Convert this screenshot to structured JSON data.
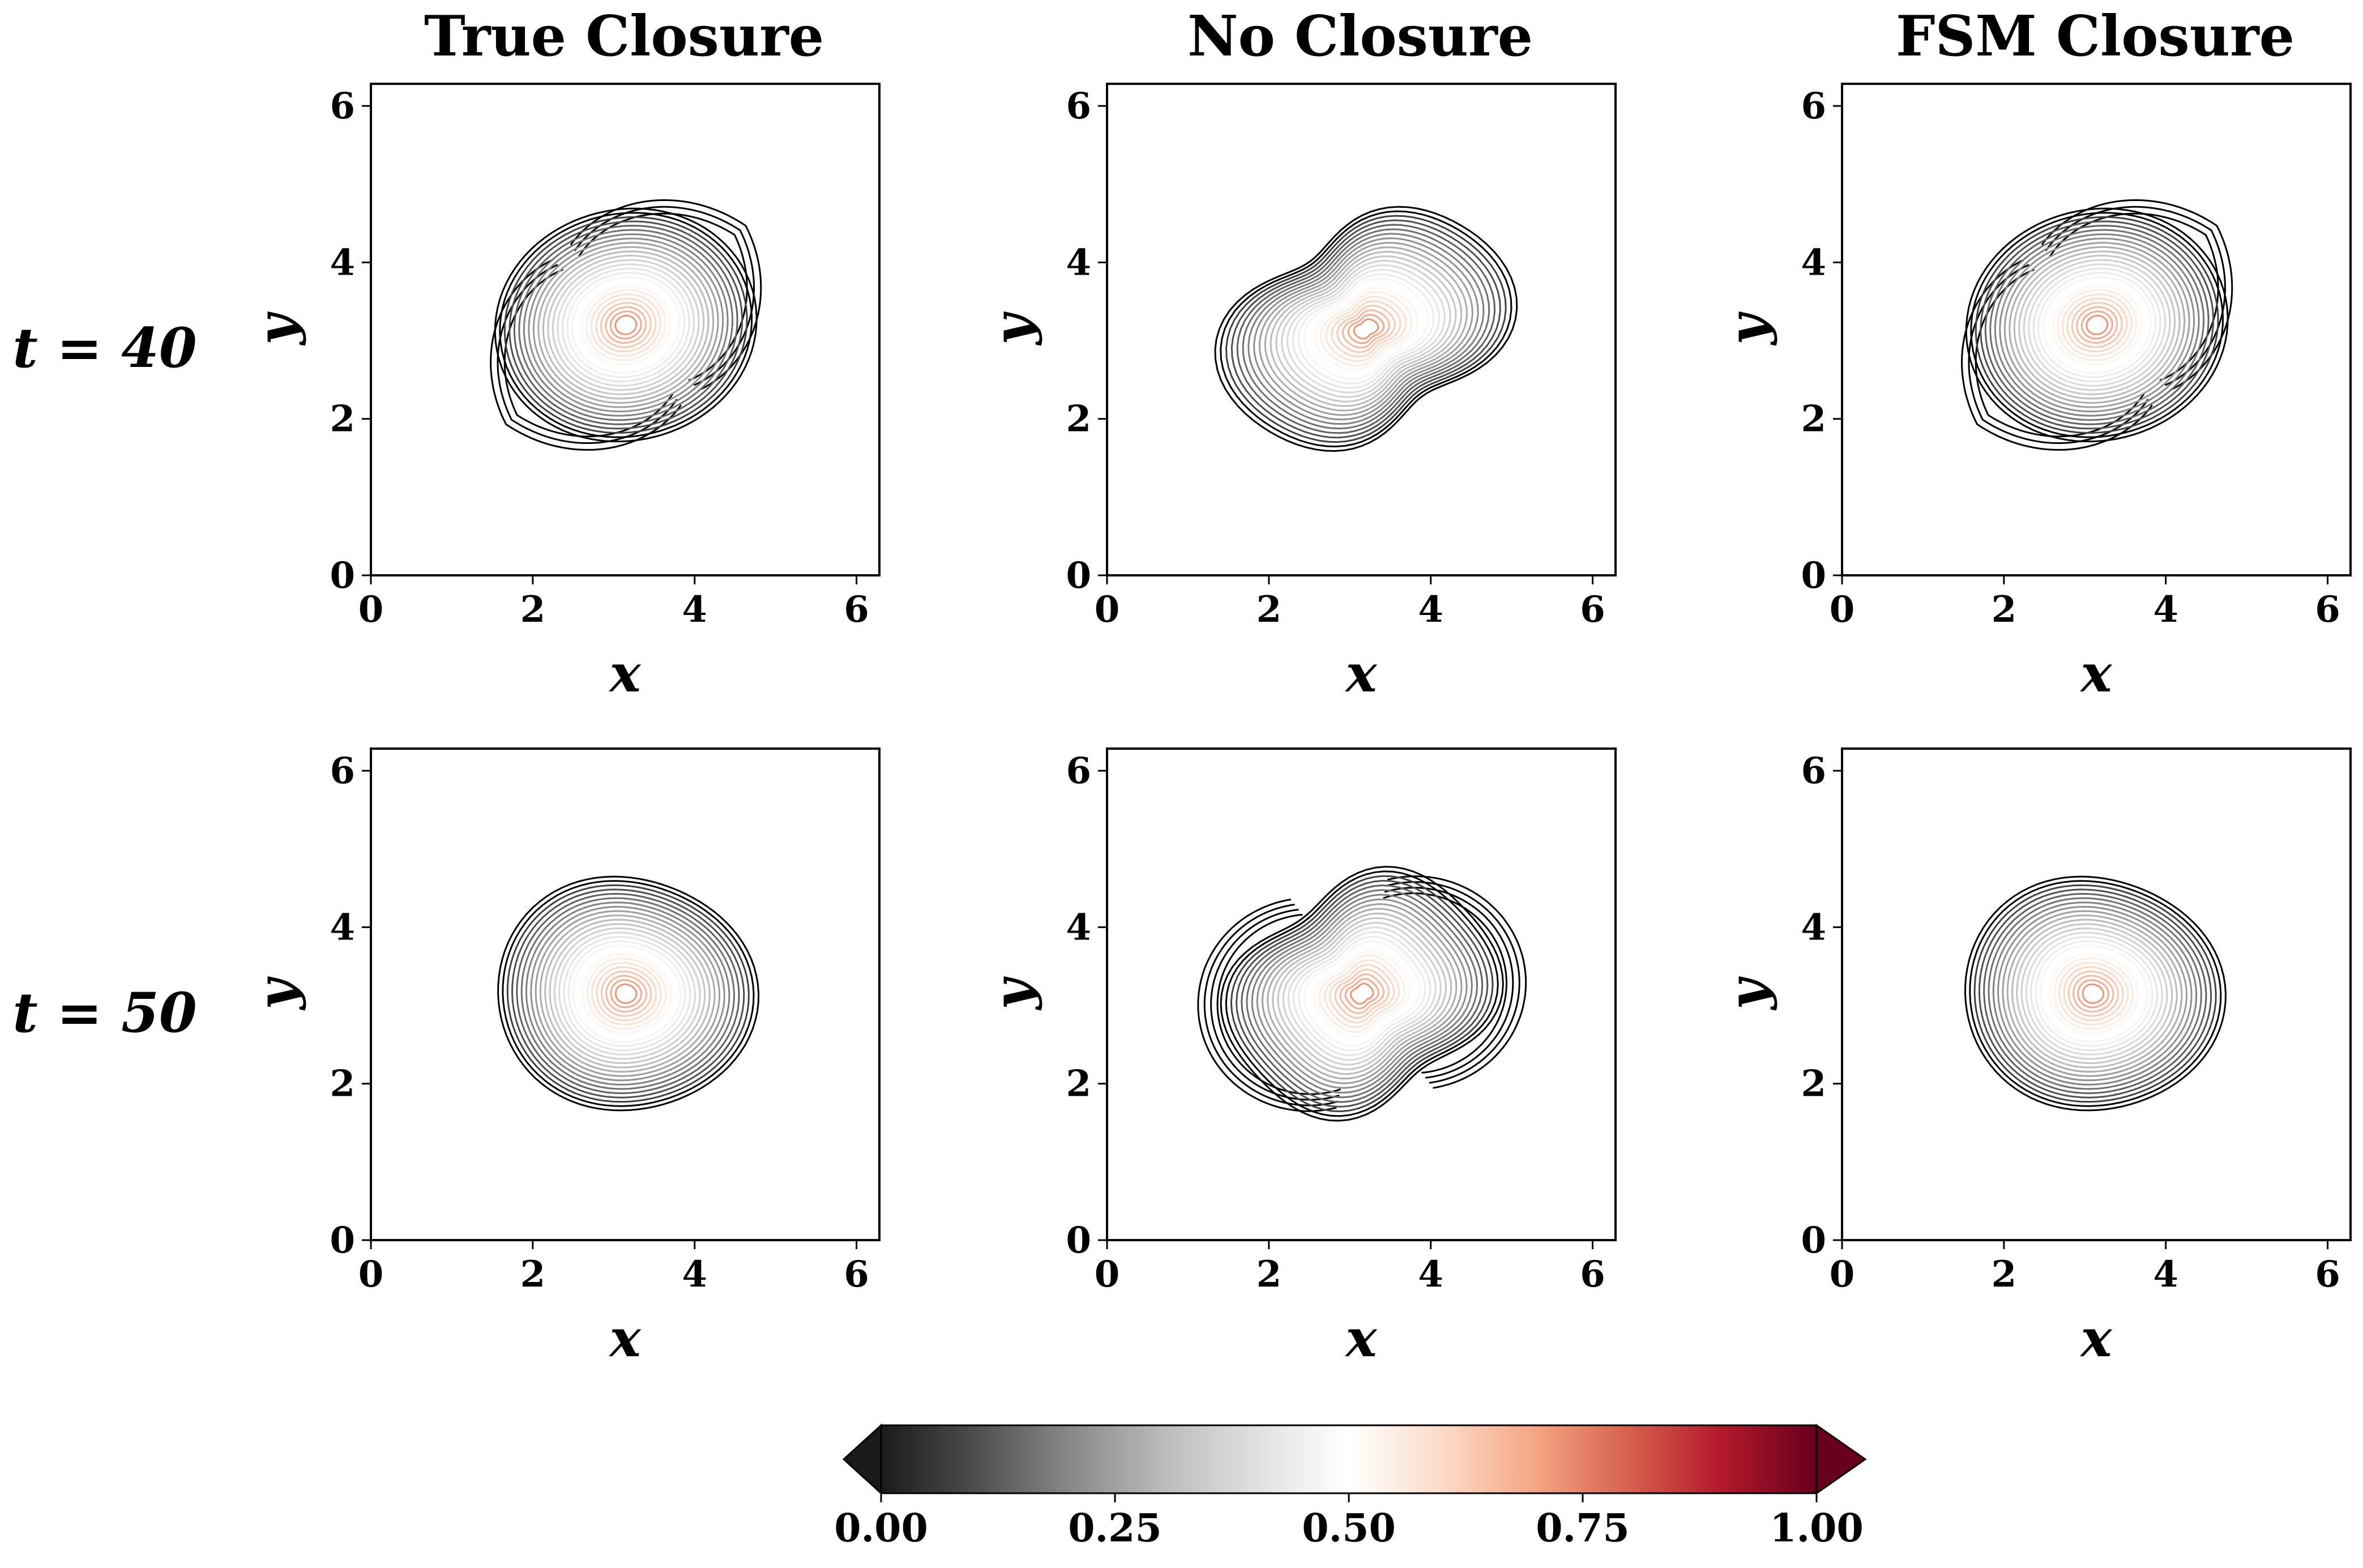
{
  "colors": {
    "colormap": [
      "#1a1a1a",
      "#4d4d4d",
      "#878787",
      "#bababa",
      "#e0e0e0",
      "#ffffff",
      "#fddbc7",
      "#f4a582",
      "#d6604d",
      "#b2182b",
      "#67001f"
    ],
    "contour_dark": "#000000"
  },
  "chart_data": {
    "type": "contour",
    "title": "",
    "columns": [
      "True Closure",
      "No Closure",
      "FSM Closure"
    ],
    "rows": [
      "t = 40",
      "t = 50"
    ],
    "xlabel": "x",
    "ylabel": "y",
    "xlim": [
      0,
      6.283
    ],
    "ylim": [
      0,
      6.283
    ],
    "xticks": [
      "0",
      "2",
      "4",
      "6"
    ],
    "yticks": [
      "0",
      "2",
      "4",
      "6"
    ],
    "xtick_values": [
      0,
      2,
      4,
      6
    ],
    "ytick_values": [
      0,
      2,
      4,
      6
    ],
    "colorbar": {
      "min": 0,
      "max": 1,
      "ticks": [
        "0.00",
        "0.25",
        "0.50",
        "0.75",
        "1.00"
      ],
      "tick_values": [
        0,
        0.25,
        0.5,
        0.75,
        1
      ],
      "extend": "both",
      "cmap": "RdGy_r"
    },
    "panels": [
      {
        "name": "panel-true-closure-t40",
        "row": 0,
        "col": 0,
        "center": [
          3.15,
          3.2
        ],
        "field": "vorticity",
        "peak": 0.72,
        "pattern": "two-spiral-arms"
      },
      {
        "name": "panel-no-closure-t40",
        "row": 0,
        "col": 1,
        "center": [
          3.2,
          3.15
        ],
        "field": "vorticity",
        "peak": 0.72,
        "pattern": "elongated-diagonal"
      },
      {
        "name": "panel-fsm-closure-t40",
        "row": 0,
        "col": 2,
        "center": [
          3.15,
          3.2
        ],
        "field": "vorticity",
        "peak": 0.72,
        "pattern": "two-spiral-arms"
      },
      {
        "name": "panel-true-closure-t50",
        "row": 1,
        "col": 0,
        "center": [
          3.15,
          3.15
        ],
        "field": "vorticity",
        "peak": 0.72,
        "pattern": "axisymmetric"
      },
      {
        "name": "panel-no-closure-t50",
        "row": 1,
        "col": 1,
        "center": [
          3.15,
          3.15
        ],
        "field": "vorticity",
        "peak": 0.72,
        "pattern": "s-shaped-filaments"
      },
      {
        "name": "panel-fsm-closure-t50",
        "row": 1,
        "col": 2,
        "center": [
          3.1,
          3.15
        ],
        "field": "vorticity",
        "peak": 0.72,
        "pattern": "axisymmetric"
      }
    ]
  }
}
